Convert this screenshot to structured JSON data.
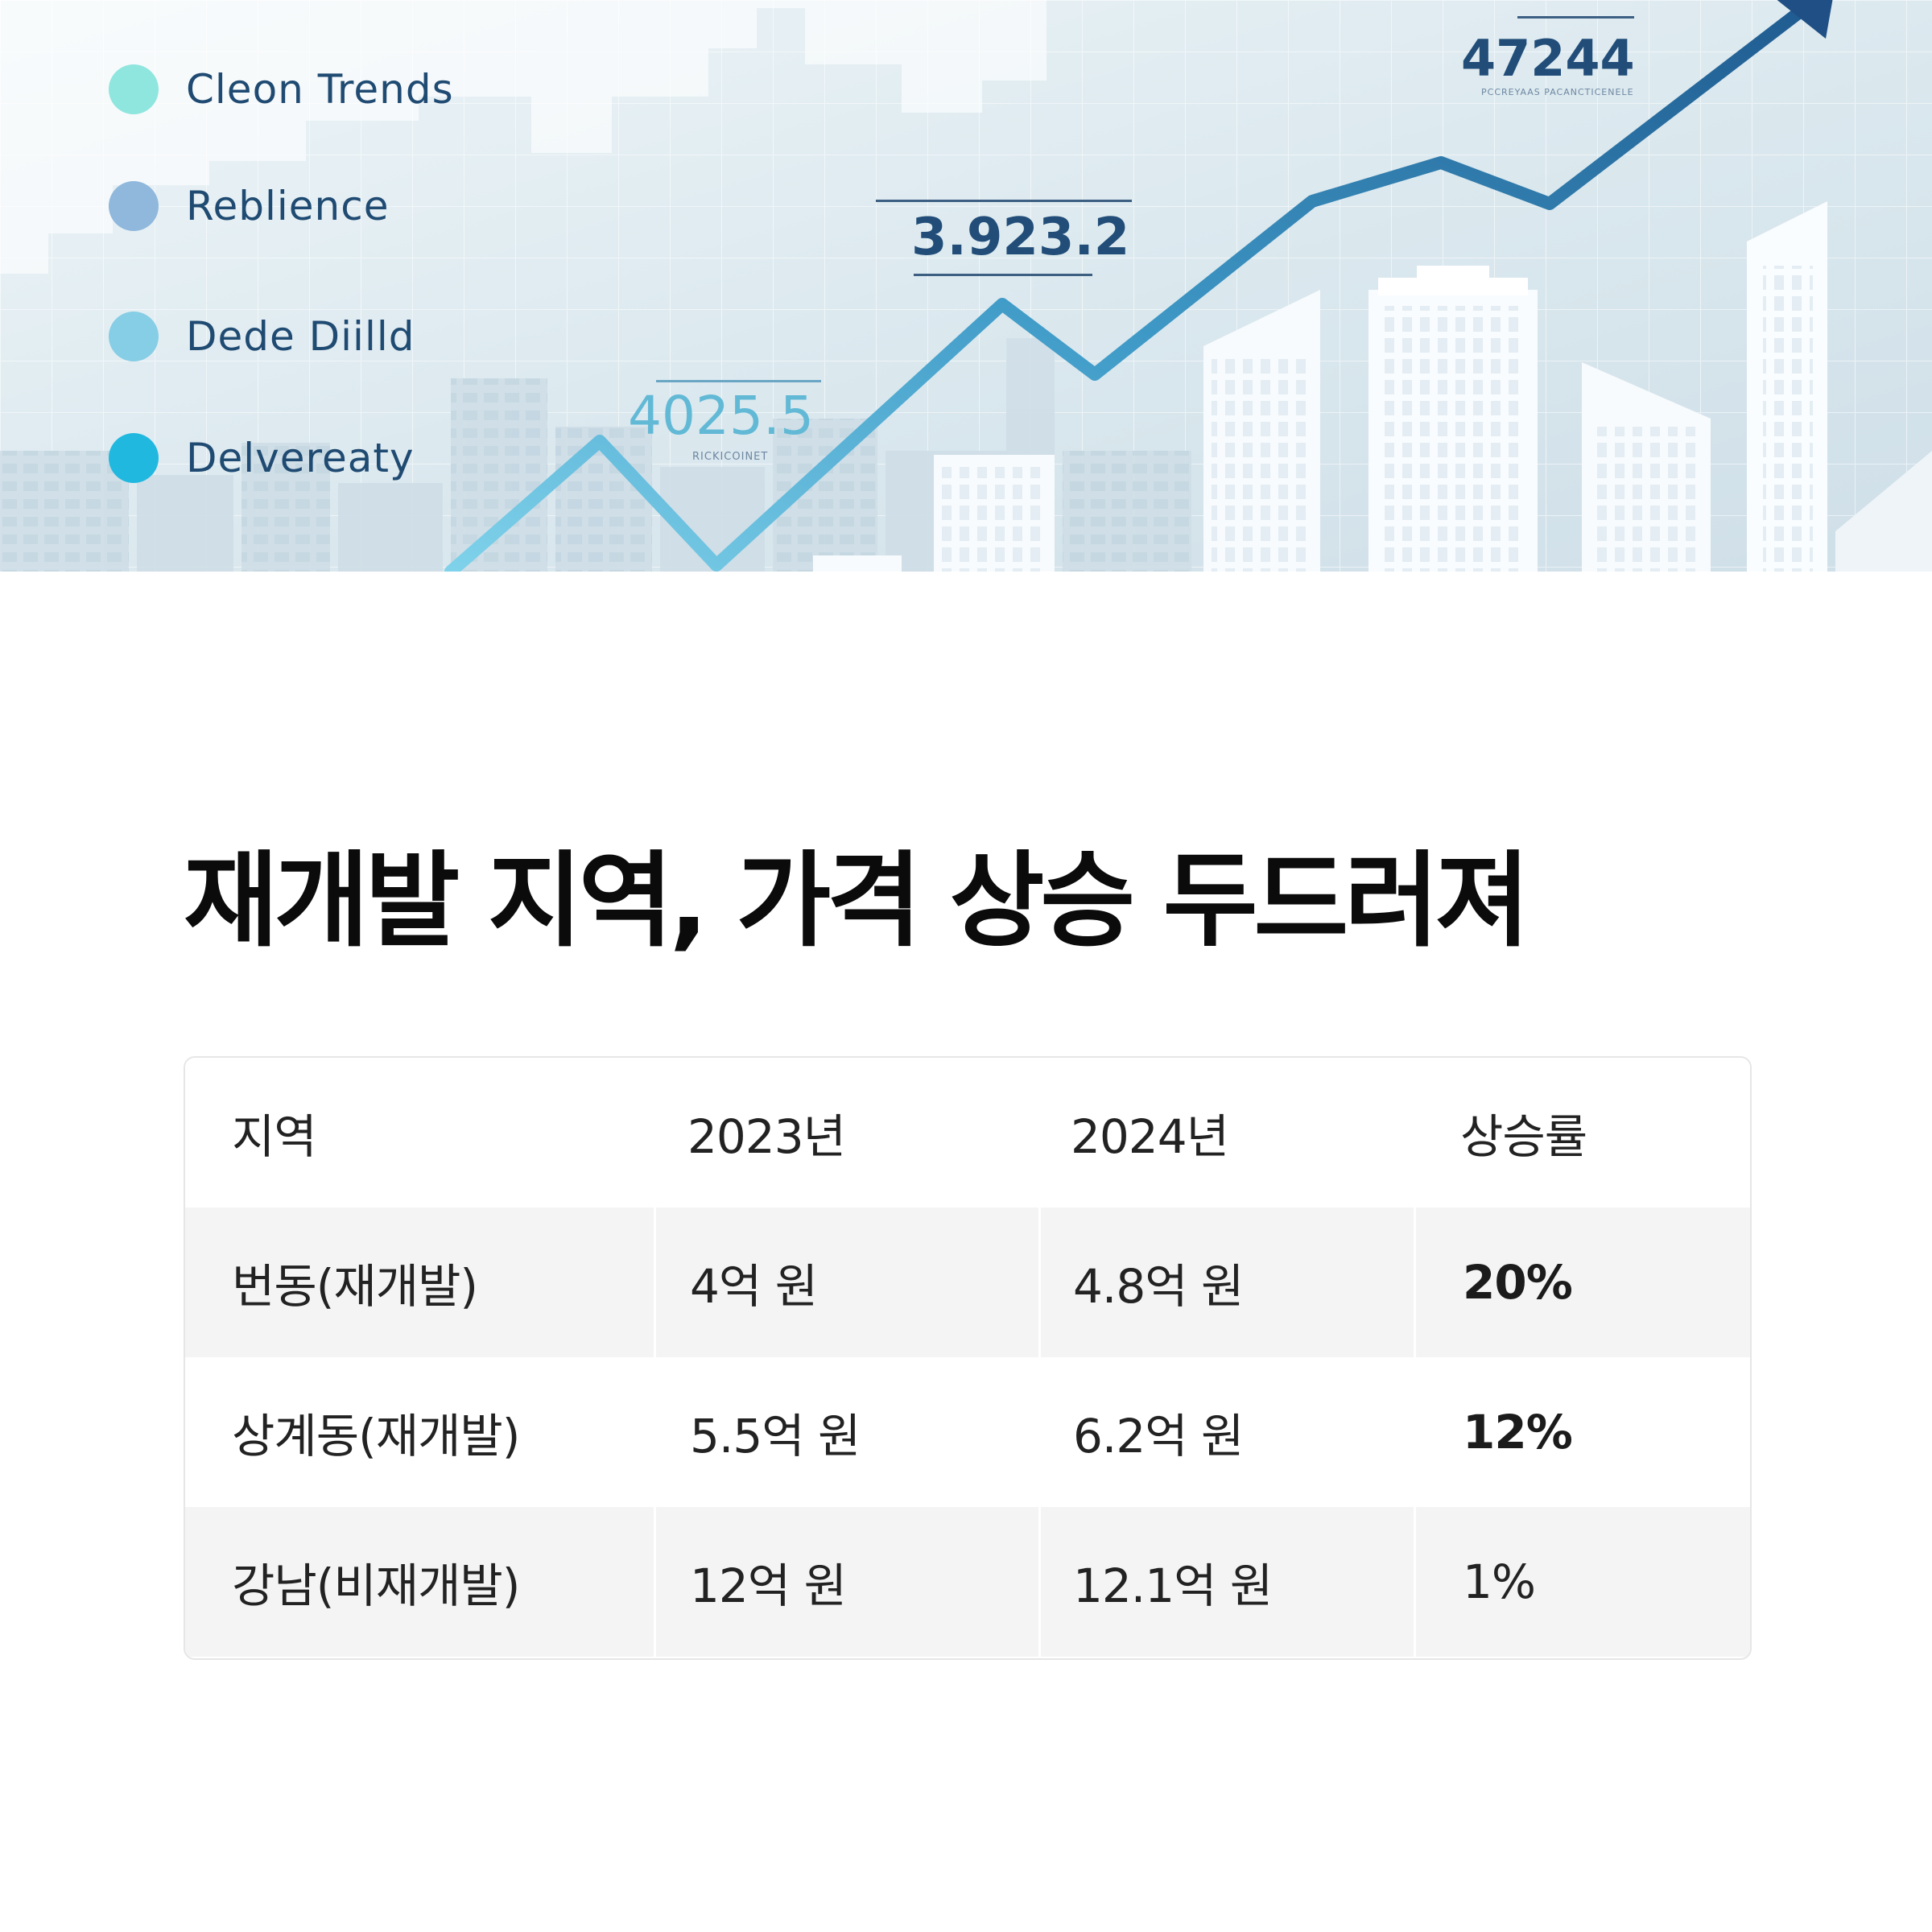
{
  "hero": {
    "legend": [
      {
        "label": "Cleon Trends",
        "color": "#8fe6df"
      },
      {
        "label": "Reblience",
        "color": "#8fb8dc"
      },
      {
        "label": "Dede Diilld",
        "color": "#86cde6"
      },
      {
        "label": "Delvereaty",
        "color": "#21b8e0"
      }
    ],
    "callouts": [
      {
        "value": "4025.5",
        "sub": "RICKICOINET",
        "color": "#62b9d6"
      },
      {
        "value": "3.923.2",
        "sub": "",
        "color": "#214d78"
      },
      {
        "value": "47244",
        "sub": "PCCREYAAS PACANCTICENELE",
        "color": "#214d78"
      }
    ]
  },
  "headline": "재개발 지역, 가격 상승 두드러져",
  "table": {
    "columns": [
      "지역",
      "2023년",
      "2024년",
      "상승률"
    ],
    "rows": [
      {
        "region": "번동(재개발)",
        "y2023": "4억 원",
        "y2024": "4.8억 원",
        "rate": "20%"
      },
      {
        "region": "상계동(재개발)",
        "y2023": "5.5억 원",
        "y2024": "6.2억 원",
        "rate": "12%"
      },
      {
        "region": "강남(비재개발)",
        "y2023": "12억 원",
        "y2024": "12.1억 원",
        "rate": "1%"
      }
    ]
  }
}
